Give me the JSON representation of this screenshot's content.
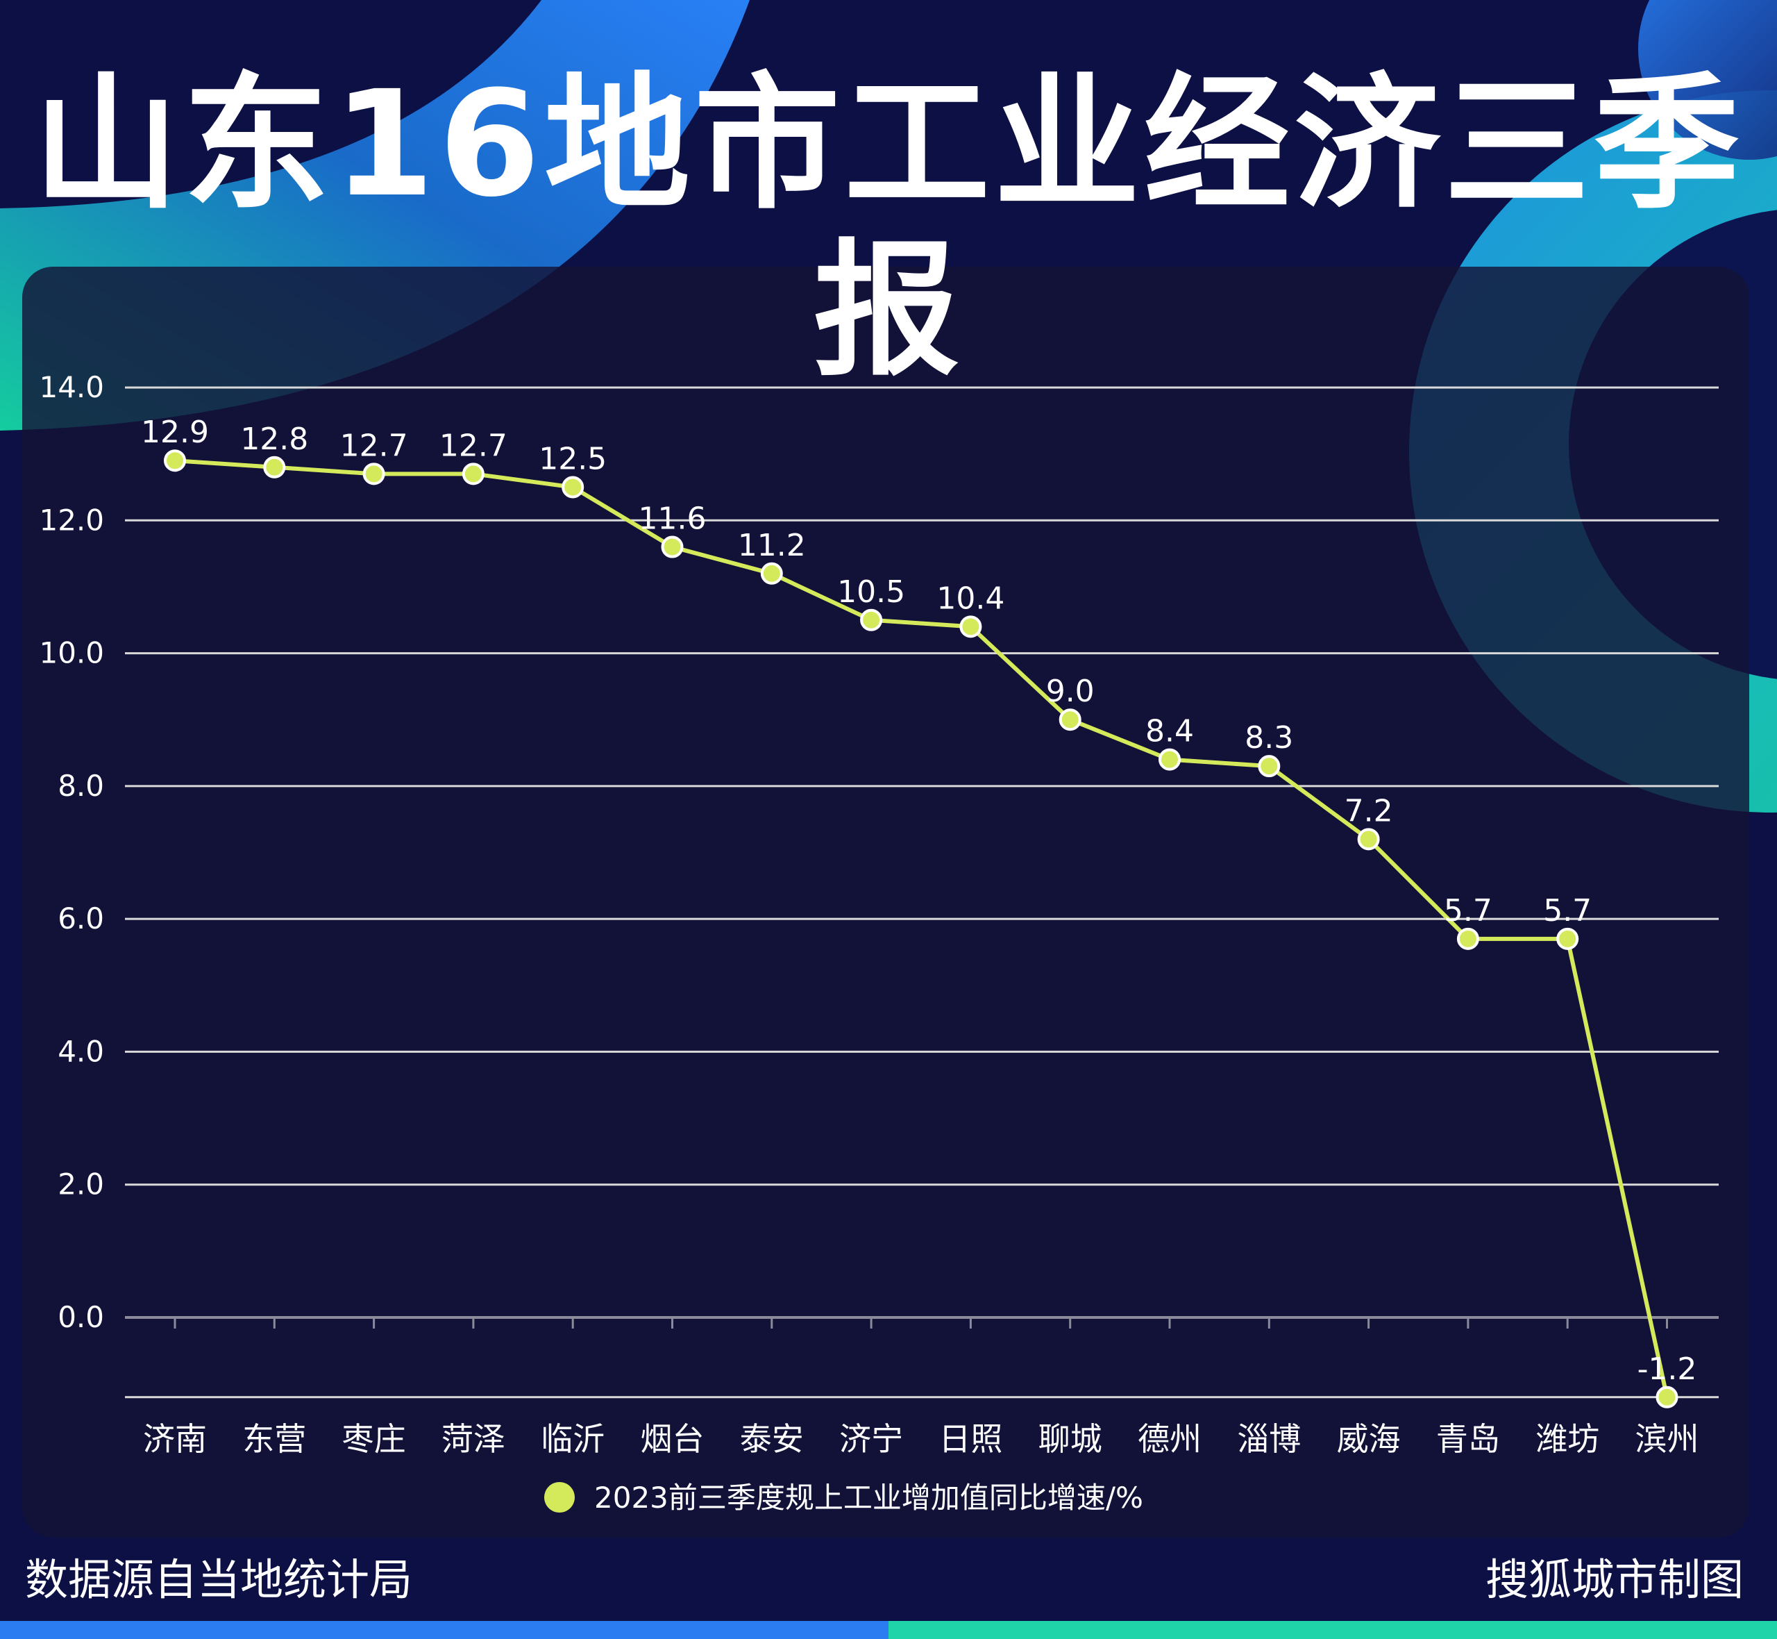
{
  "title": "山东16地市工业经济三季报",
  "footer": {
    "source": "数据源自当地统计局",
    "credit": "搜狐城市制图"
  },
  "colors": {
    "background": "#0c1045",
    "panel": "#141437",
    "line": "#d4ea5a",
    "grid": "#d9d9d9",
    "text": "#ffffff",
    "accent_blue": "#2a7cf0",
    "accent_green": "#1fd4a8"
  },
  "chart_data": {
    "type": "line",
    "categories": [
      "济南",
      "东营",
      "枣庄",
      "菏泽",
      "临沂",
      "烟台",
      "泰安",
      "济宁",
      "日照",
      "聊城",
      "德州",
      "淄博",
      "威海",
      "青岛",
      "潍坊",
      "滨州"
    ],
    "series": [
      {
        "name": "2023前三季度规上工业增加值同比增速/%",
        "values": [
          12.9,
          12.8,
          12.7,
          12.7,
          12.5,
          11.6,
          11.2,
          10.5,
          10.4,
          9.0,
          8.4,
          8.3,
          7.2,
          5.7,
          5.7,
          -1.2
        ],
        "labels": [
          "12.9",
          "12.8",
          "12.7",
          "12.7",
          "12.5",
          "11.6",
          "11.2",
          "10.5",
          "10.4",
          "9.0",
          "8.4",
          "8.3",
          "7.2",
          "5.7",
          "5.7",
          "-1.2"
        ]
      }
    ],
    "yticks": [
      "0.0",
      "2.0",
      "4.0",
      "6.0",
      "8.0",
      "10.0",
      "12.0",
      "14.0"
    ],
    "ylim": [
      -1.2,
      14
    ],
    "grid": true,
    "legend": "bottom"
  }
}
